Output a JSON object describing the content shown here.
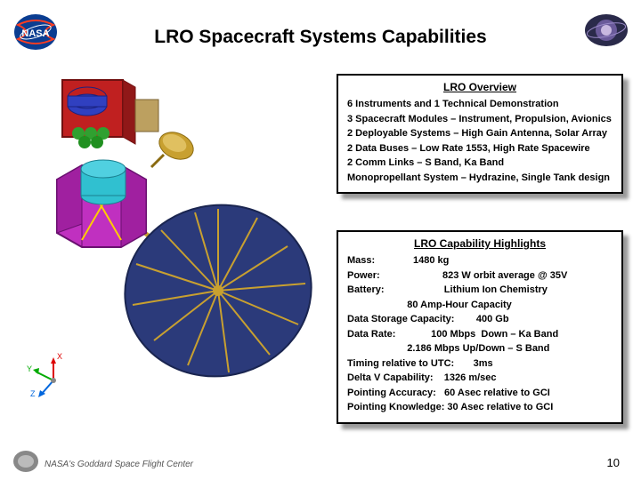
{
  "title": "LRO Spacecraft Systems Capabilities",
  "page_number": "10",
  "footer": "NASA's Goddard Space Flight Center",
  "colors": {
    "nasa_blue": "#0b3d91",
    "nasa_red": "#fc3d21",
    "box_border": "#000000",
    "box_bg": "#ffffff",
    "shadow": "rgba(0,0,0,0.4)",
    "antenna_fill": "#2b3a7a",
    "body_fill": "#c030c0",
    "panel_fill": "#c02020",
    "gold": "#c8a030",
    "green": "#30a030",
    "cyan": "#30c0d0"
  },
  "overview": {
    "title": "LRO Overview",
    "lines": [
      "6 Instruments and 1 Technical Demonstration",
      "3 Spacecraft Modules – Instrument, Propulsion, Avionics",
      "2 Deployable Systems – High Gain Antenna, Solar Array",
      "2 Data Buses – Low Rate 1553, High Rate Spacewire",
      "2 Comm Links – S Band, Ka Band",
      "Monopropellant System – Hydrazine, Single Tank design"
    ]
  },
  "highlights": {
    "title": "LRO Capability Highlights",
    "lines": [
      "Mass:              1480 kg",
      "Power:                       823 W orbit average @ 35V",
      "Battery:                      Lithium Ion Chemistry",
      "                      80 Amp-Hour Capacity",
      "Data Storage Capacity:        400 Gb",
      "Data Rate:             100 Mbps  Down – Ka Band",
      "                      2.186 Mbps Up/Down – S Band",
      "Timing relative to UTC:       3ms",
      "Delta V Capability:    1326 m/sec",
      "Pointing Accuracy:   60 Asec relative to GCI",
      "Pointing Knowledge: 30 Asec relative to GCI"
    ]
  },
  "axes": {
    "x": "X",
    "y": "Y",
    "z": "Z"
  }
}
